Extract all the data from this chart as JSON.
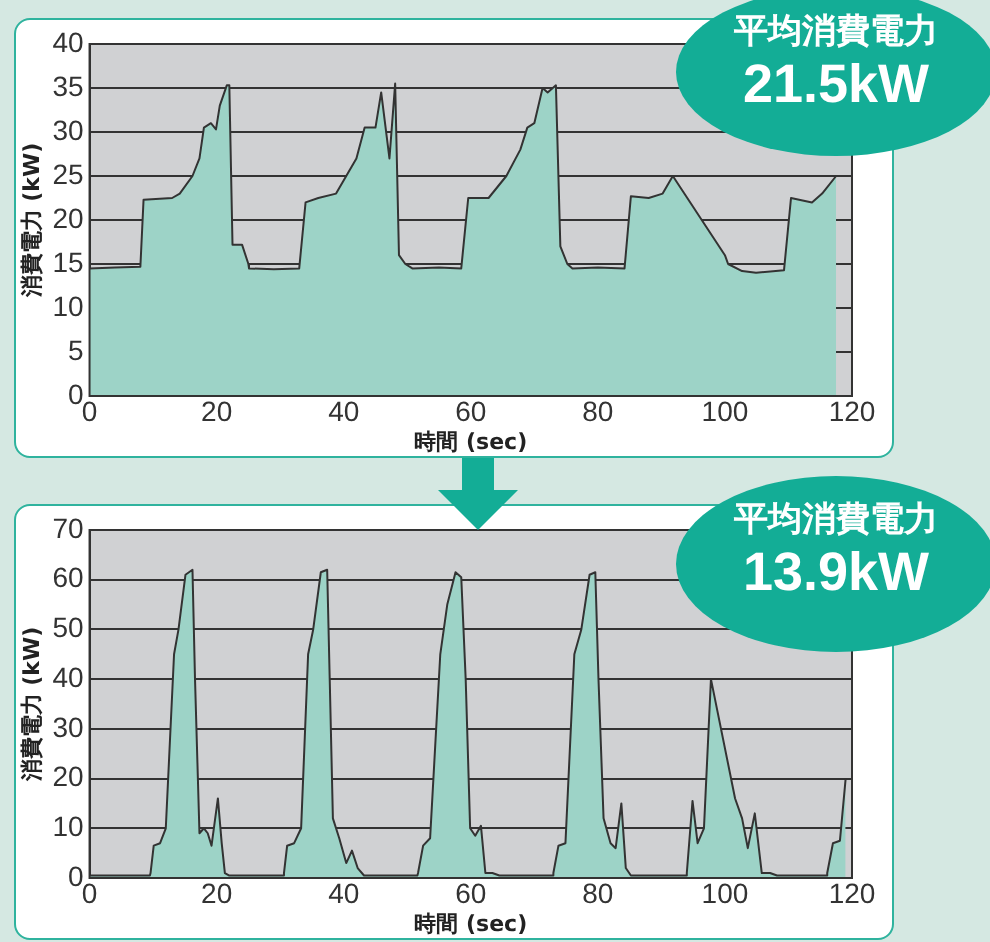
{
  "chart_data": [
    {
      "type": "area",
      "xlabel": "時間 (sec)",
      "ylabel": "消費電力 (kW)",
      "xlim": [
        0,
        120
      ],
      "xticks": [
        0,
        20,
        40,
        60,
        80,
        100,
        120
      ],
      "ylim": [
        0,
        40
      ],
      "yticks": [
        0,
        5,
        10,
        15,
        20,
        25,
        30,
        35,
        40
      ],
      "grid": "y",
      "legend": false,
      "annotations": [
        "平均消費電力",
        "21.5kW"
      ],
      "series": [
        {
          "color": "#9dd3c7",
          "x": [
            0,
            4,
            8,
            8.5,
            13,
            14.2,
            16.2,
            17.3,
            18,
            19.1,
            19.9,
            20.5,
            21.6,
            22,
            22.5,
            24,
            25,
            25.1,
            29,
            33,
            34,
            36,
            38.8,
            40.4,
            42,
            43.3,
            45,
            45.9,
            47.2,
            48.1,
            48.7,
            49.7,
            50.8,
            55,
            58.5,
            59.6,
            62.8,
            65.6,
            67.8,
            68.9,
            70,
            71.3,
            72.1,
            73.4,
            74.1,
            75.2,
            76,
            80,
            84.2,
            85.2,
            88,
            90.2,
            91.8,
            93.1,
            94,
            99.4,
            100,
            100.5,
            102.7,
            104.9,
            109.3,
            110.4,
            113.7,
            115.3,
            117.5
          ],
          "values": [
            14.5,
            14.6,
            14.7,
            22.3,
            22.5,
            23,
            25,
            27,
            30.5,
            31,
            30.3,
            33,
            35.3,
            35.3,
            17.2,
            17.2,
            15,
            14.5,
            14.4,
            14.5,
            22,
            22.5,
            23,
            25,
            27,
            30.5,
            30.5,
            34.5,
            27,
            35.5,
            16,
            15,
            14.5,
            14.6,
            14.5,
            22.5,
            22.5,
            25,
            28,
            30.5,
            31,
            35,
            34.5,
            35.3,
            17,
            15,
            14.5,
            14.6,
            14.5,
            22.7,
            22.5,
            23,
            25,
            null,
            null,
            null,
            16,
            15,
            14.2,
            14,
            14.3,
            22.5,
            22,
            23,
            25
          ]
        }
      ]
    },
    {
      "type": "area",
      "xlabel": "時間 (sec)",
      "ylabel": "消費電力 (kW)",
      "xlim": [
        0,
        120
      ],
      "xticks": [
        0,
        20,
        40,
        60,
        80,
        100,
        120
      ],
      "ylim": [
        0,
        70
      ],
      "yticks": [
        0,
        10,
        20,
        30,
        40,
        50,
        60,
        70
      ],
      "grid": "y",
      "legend": false,
      "annotations": [
        "平均消費電力",
        "13.9kW"
      ],
      "series": [
        {
          "color": "#9dd3c7",
          "x": [
            0,
            9.5,
            9.6,
            10.1,
            11.1,
            12,
            13.3,
            14,
            15.1,
            16.2,
            16.6,
            17.3,
            18,
            18.6,
            19.2,
            20.2,
            20.8,
            21.3,
            22,
            30.5,
            30.6,
            31.1,
            32.2,
            33.3,
            34.4,
            35.2,
            36.4,
            37.4,
            37.8,
            38.3,
            39.3,
            40.4,
            41.3,
            42.2,
            43.2,
            51.6,
            51.7,
            52.5,
            53.6,
            55.2,
            56.3,
            57.6,
            58.5,
            59.2,
            59.9,
            60.7,
            61.6,
            62.3,
            63.4,
            64.5,
            72.9,
            73,
            73.8,
            74.9,
            76.3,
            77.4,
            78.7,
            79.6,
            80.1,
            80.9,
            82,
            82.8,
            83.7,
            84.4,
            85.2,
            93.9,
            94,
            94.9,
            95.7,
            96.7,
            97.8,
            101.6,
            102.7,
            103.6,
            104.7,
            105.8,
            107.1,
            108.2,
            116,
            116.1,
            117,
            118.1,
            119
          ],
          "values": [
            0.5,
            0.5,
            1,
            6.5,
            7,
            10,
            45,
            50,
            61,
            62,
            40,
            9,
            10,
            9,
            6.5,
            16,
            7,
            1,
            0.5,
            0.5,
            1,
            6.5,
            7,
            10,
            45,
            50,
            61.5,
            62,
            40,
            12,
            8,
            3,
            5.5,
            2,
            0.5,
            0.5,
            1,
            6.5,
            8,
            45,
            55,
            61.5,
            60.5,
            40,
            10,
            8.5,
            10.5,
            1,
            1,
            0.5,
            0.5,
            1,
            6.5,
            7,
            45,
            50,
            61,
            61.5,
            40,
            12,
            7,
            6,
            15,
            2,
            0.5,
            0.5,
            1,
            15.5,
            7,
            10,
            40,
            16,
            12,
            6,
            13,
            1,
            1,
            0.5,
            0.5,
            1,
            7,
            7.5,
            20
          ]
        }
      ]
    }
  ]
}
